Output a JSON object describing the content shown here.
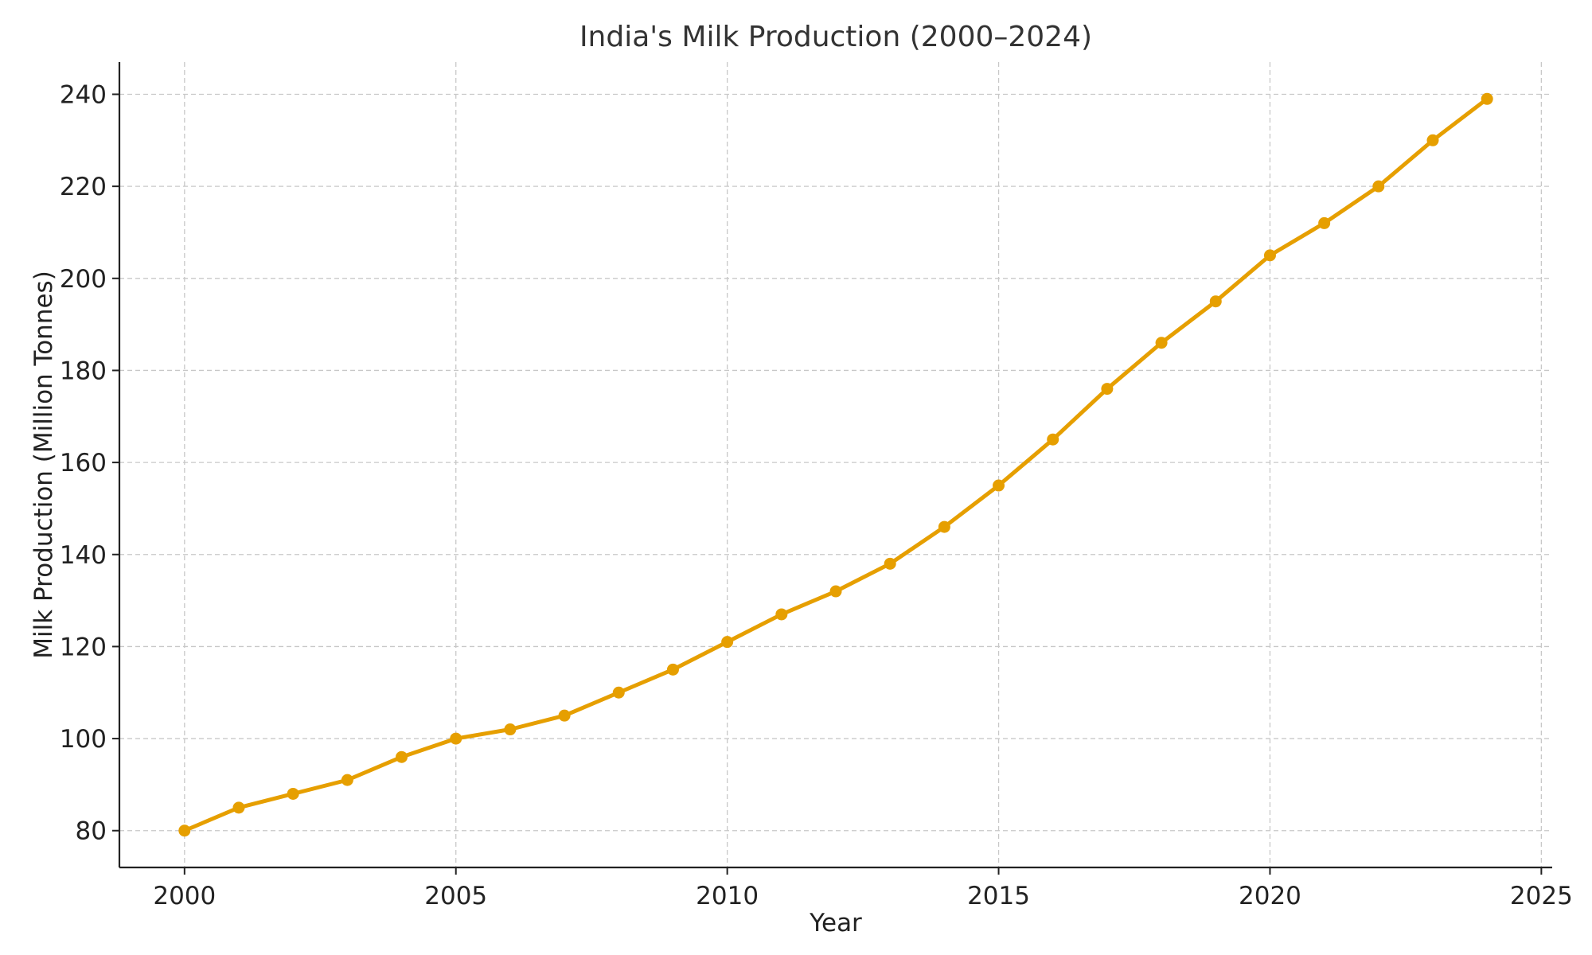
{
  "colors": {
    "series": "#E69F00",
    "grid": "#c8c8c8",
    "axis": "#222222",
    "title": "#333333"
  },
  "chart_data": {
    "type": "line",
    "title": "India's Milk Production (2000–2024)",
    "xlabel": "Year",
    "ylabel": "Milk Production (Million Tonnes)",
    "xlim": [
      1998.8,
      2025.2
    ],
    "ylim": [
      72,
      247
    ],
    "xticks": [
      2000,
      2005,
      2010,
      2015,
      2020,
      2025
    ],
    "yticks": [
      80,
      100,
      120,
      140,
      160,
      180,
      200,
      220,
      240
    ],
    "grid": true,
    "marker": "circle",
    "x": [
      2000,
      2001,
      2002,
      2003,
      2004,
      2005,
      2006,
      2007,
      2008,
      2009,
      2010,
      2011,
      2012,
      2013,
      2014,
      2015,
      2016,
      2017,
      2018,
      2019,
      2020,
      2021,
      2022,
      2023,
      2024
    ],
    "series": [
      {
        "values": [
          80,
          85,
          88,
          91,
          96,
          100,
          102,
          105,
          110,
          115,
          121,
          127,
          132,
          138,
          146,
          155,
          165,
          176,
          186,
          195,
          205,
          212,
          220,
          230,
          239
        ],
        "color": "#E69F00"
      }
    ]
  }
}
